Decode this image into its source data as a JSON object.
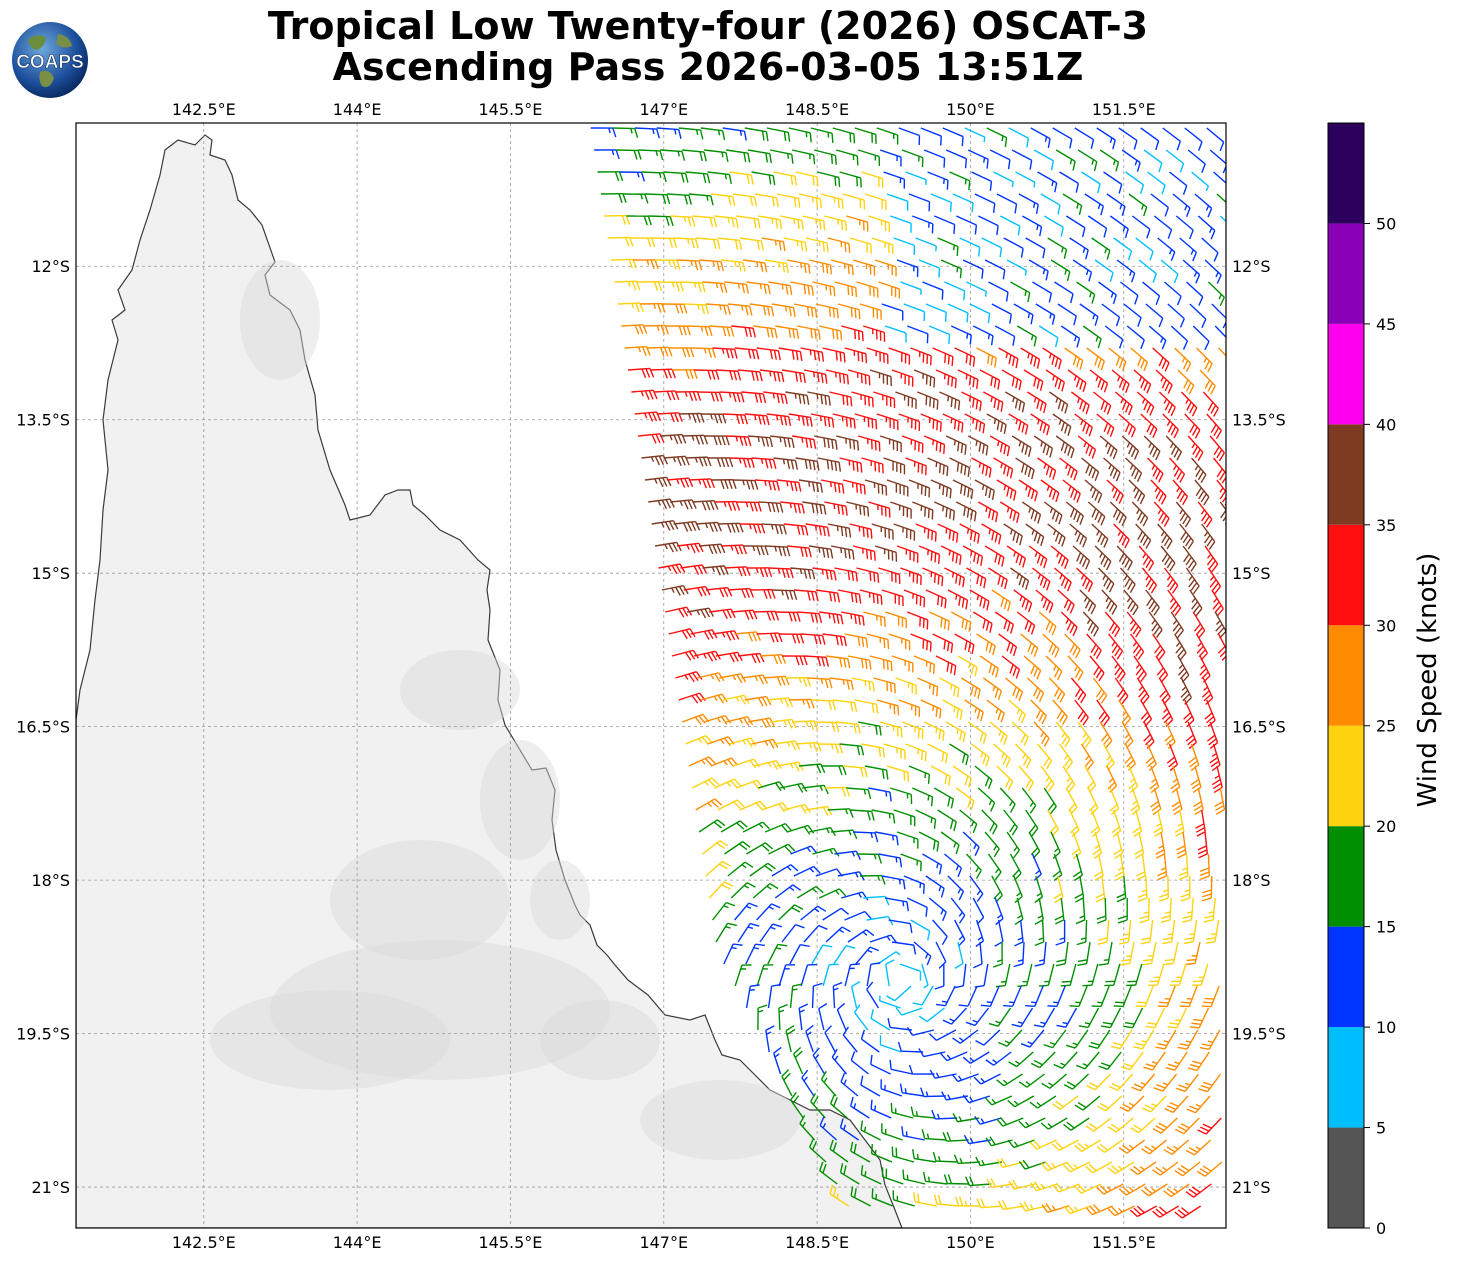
{
  "title": {
    "line1": "Tropical Low Twenty-four (2026) OSCAT-3",
    "line2": "Ascending Pass 2026-03-05 13:51Z"
  },
  "logo": {
    "text": "COAPS",
    "icon": "globe-logo"
  },
  "map": {
    "lon_ticks": [
      "142.5°E",
      "144°E",
      "145.5°E",
      "147°E",
      "148.5°E",
      "150°E",
      "151.5°E"
    ],
    "lat_ticks": [
      "12°S",
      "13.5°S",
      "15°S",
      "16.5°S",
      "18°S",
      "19.5°S",
      "21°S"
    ],
    "lon_values": [
      142.5,
      144,
      145.5,
      147,
      148.5,
      150,
      151.5
    ],
    "lat_values": [
      -12,
      -13.5,
      -15,
      -16.5,
      -18,
      -19.5,
      -21
    ],
    "extent": {
      "lon": [
        141.25,
        152.5
      ],
      "lat": [
        -10.6,
        -21.4
      ]
    },
    "gridlines": true,
    "land_color": "#f2f2f2",
    "coast_color": "#333333"
  },
  "colorbar": {
    "label": "Wind Speed (knots)",
    "tick_labels": [
      "0",
      "5",
      "10",
      "15",
      "20",
      "25",
      "30",
      "35",
      "40",
      "45",
      "50"
    ],
    "bins": [
      {
        "min": 0,
        "max": 5,
        "color": "#555555"
      },
      {
        "min": 5,
        "max": 10,
        "color": "#00bfff"
      },
      {
        "min": 10,
        "max": 15,
        "color": "#0035ff"
      },
      {
        "min": 15,
        "max": 20,
        "color": "#008f00"
      },
      {
        "min": 20,
        "max": 25,
        "color": "#ffd20f"
      },
      {
        "min": 25,
        "max": 30,
        "color": "#ff8c00"
      },
      {
        "min": 30,
        "max": 35,
        "color": "#ff0f0f"
      },
      {
        "min": 35,
        "max": 40,
        "color": "#7f3a22"
      },
      {
        "min": 40,
        "max": 45,
        "color": "#ff00ee"
      },
      {
        "min": 45,
        "max": 50,
        "color": "#8a00b8"
      },
      {
        "min": 50,
        "max": 55,
        "color": "#2c005c"
      }
    ]
  }
}
